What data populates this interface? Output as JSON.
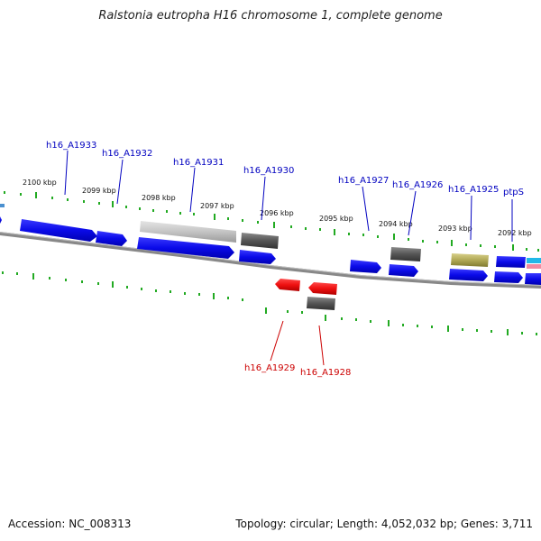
{
  "title": "Ralstonia eutropha H16 chromosome 1, complete genome",
  "footer": {
    "accession": "Accession: NC_008313",
    "summary": "Topology: circular; Length: 4,052,032 bp; Genes: 3,711"
  },
  "colors": {
    "forward_gene": "#1010e0",
    "reverse_gene": "#e81010",
    "label_top": "#0000c0",
    "label_bottom": "#cc0000",
    "tick": "#22aa22",
    "backbone": "#777777"
  },
  "kbp_labels": [
    "2100 kbp",
    "2099 kbp",
    "2098 kbp",
    "2097 kbp",
    "2096 kbp",
    "2095 kbp",
    "2094 kbp",
    "2093 kbp",
    "2092 kbp"
  ],
  "top_labels": [
    "h16_A1933",
    "h16_A1932",
    "h16_A1931",
    "h16_A1930",
    "h16_A1927",
    "h16_A1926",
    "h16_A1925",
    "ptpS"
  ],
  "bottom_labels": [
    "h16_A1929",
    "h16_A1928"
  ]
}
